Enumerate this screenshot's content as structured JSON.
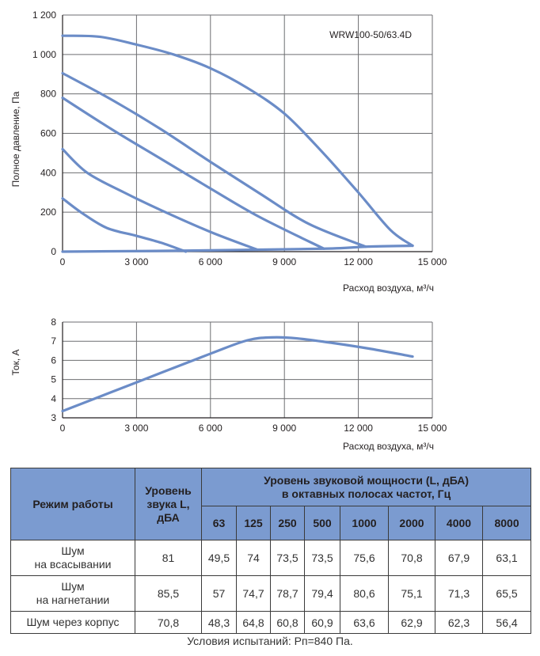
{
  "chart_data": [
    {
      "type": "line",
      "model_label": "WRW100-50/63.4D",
      "ylabel": "Полное давление, Па",
      "xlabel": "Расход воздуха, м³/ч",
      "xlim": [
        0,
        15000
      ],
      "ylim": [
        0,
        1200
      ],
      "xticks": [
        "0",
        "3 000",
        "6 000",
        "9 000",
        "12 000",
        "15 000"
      ],
      "yticks": [
        "0",
        "200",
        "400",
        "600",
        "800",
        "1 000",
        "1 200"
      ],
      "grid": true,
      "series": [
        {
          "x": [
            0,
            1500,
            3000,
            4500,
            6000,
            7500,
            9000,
            10500,
            12000,
            13300,
            14200
          ],
          "y": [
            1095,
            1090,
            1050,
            1000,
            930,
            830,
            700,
            510,
            300,
            110,
            30
          ]
        },
        {
          "x": [
            0,
            2000,
            4000,
            6000,
            8000,
            10000,
            12300
          ],
          "y": [
            905,
            770,
            620,
            455,
            295,
            140,
            25
          ]
        },
        {
          "x": [
            0,
            2000,
            4000,
            6000,
            8000,
            10600
          ],
          "y": [
            780,
            620,
            470,
            320,
            175,
            15
          ]
        },
        {
          "x": [
            0,
            1000,
            2500,
            4000,
            6000,
            7900
          ],
          "y": [
            520,
            400,
            300,
            210,
            100,
            10
          ]
        },
        {
          "x": [
            0,
            800,
            1800,
            3000,
            4000,
            5000
          ],
          "y": [
            270,
            195,
            120,
            80,
            45,
            0
          ]
        },
        {
          "x": [
            0,
            5000,
            10600,
            12300,
            14200
          ],
          "y": [
            0,
            5,
            15,
            25,
            30
          ]
        }
      ]
    },
    {
      "type": "line",
      "ylabel": "Ток, А",
      "xlabel": "Расход воздуха, м³/ч",
      "xlim": [
        0,
        15000
      ],
      "ylim": [
        3,
        8
      ],
      "xticks": [
        "0",
        "3 000",
        "6 000",
        "9 000",
        "12 000",
        "15 000"
      ],
      "yticks": [
        "3",
        "4",
        "5",
        "6",
        "7",
        "8"
      ],
      "grid": true,
      "series": [
        {
          "x": [
            0,
            3000,
            6000,
            7500,
            8500,
            9500,
            11000,
            12500,
            14200
          ],
          "y": [
            3.35,
            4.85,
            6.35,
            7.05,
            7.2,
            7.15,
            6.9,
            6.6,
            6.2
          ]
        }
      ]
    }
  ],
  "colors": {
    "curve": "#6b8cc7",
    "header": "#7b9bd0"
  },
  "table": {
    "header": {
      "mode": "Режим работы",
      "level": "Уровень звука L, дБА",
      "power_line1": "Уровень звуковой мощности (L, дБА)",
      "power_line2": "в октавных полосах частот, Гц"
    },
    "frequencies": [
      "63",
      "125",
      "250",
      "500",
      "1000",
      "2000",
      "4000",
      "8000"
    ],
    "rows": [
      {
        "mode_line1": "Шум",
        "mode_line2": "на всасывании",
        "level": "81",
        "values": [
          "49,5",
          "74",
          "73,5",
          "73,5",
          "75,6",
          "70,8",
          "67,9",
          "63,1"
        ]
      },
      {
        "mode_line1": "Шум",
        "mode_line2": "на нагнетании",
        "level": "85,5",
        "values": [
          "57",
          "74,7",
          "78,7",
          "79,4",
          "80,6",
          "75,1",
          "71,3",
          "65,5"
        ]
      },
      {
        "mode_line1": "Шум через корпус",
        "mode_line2": "",
        "level": "70,8",
        "values": [
          "48,3",
          "64,8",
          "60,8",
          "60,9",
          "63,6",
          "62,9",
          "62,3",
          "56,4"
        ]
      }
    ]
  },
  "conditions": "Условия испытаний: Рп=840 Па."
}
